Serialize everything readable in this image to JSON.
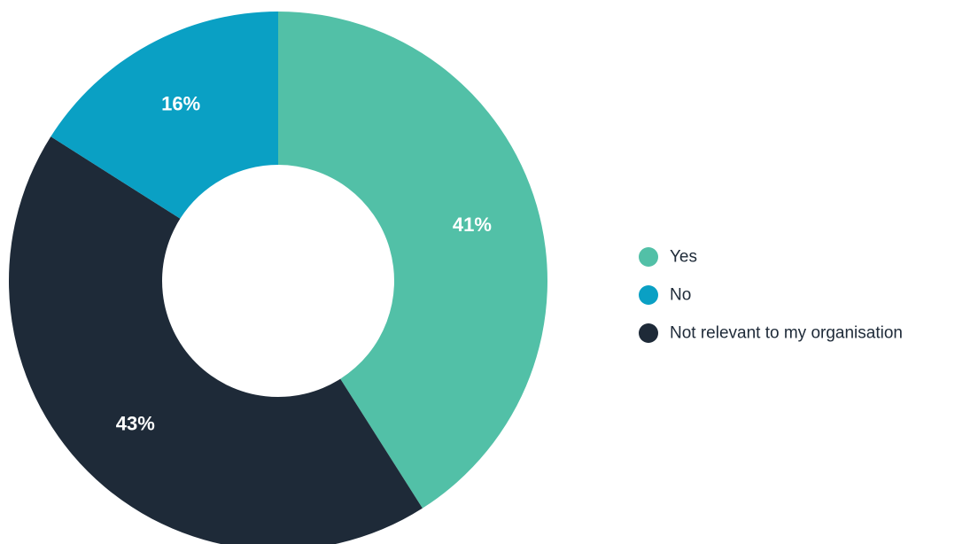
{
  "chart_data": {
    "type": "pie",
    "donut": true,
    "categories": [
      "Yes",
      "No",
      "Not relevant to my organisation"
    ],
    "values": [
      41,
      16,
      43
    ],
    "value_labels": [
      "41%",
      "16%",
      "43%"
    ],
    "slice_order": [
      "Yes",
      "Not relevant to my organisation",
      "No"
    ],
    "colors": {
      "Yes": "#52c0a7",
      "No": "#0aa0c4",
      "Not relevant to my organisation": "#1e2a38"
    },
    "legend_placement": "right",
    "title": "",
    "xlabel": "",
    "ylabel": ""
  }
}
